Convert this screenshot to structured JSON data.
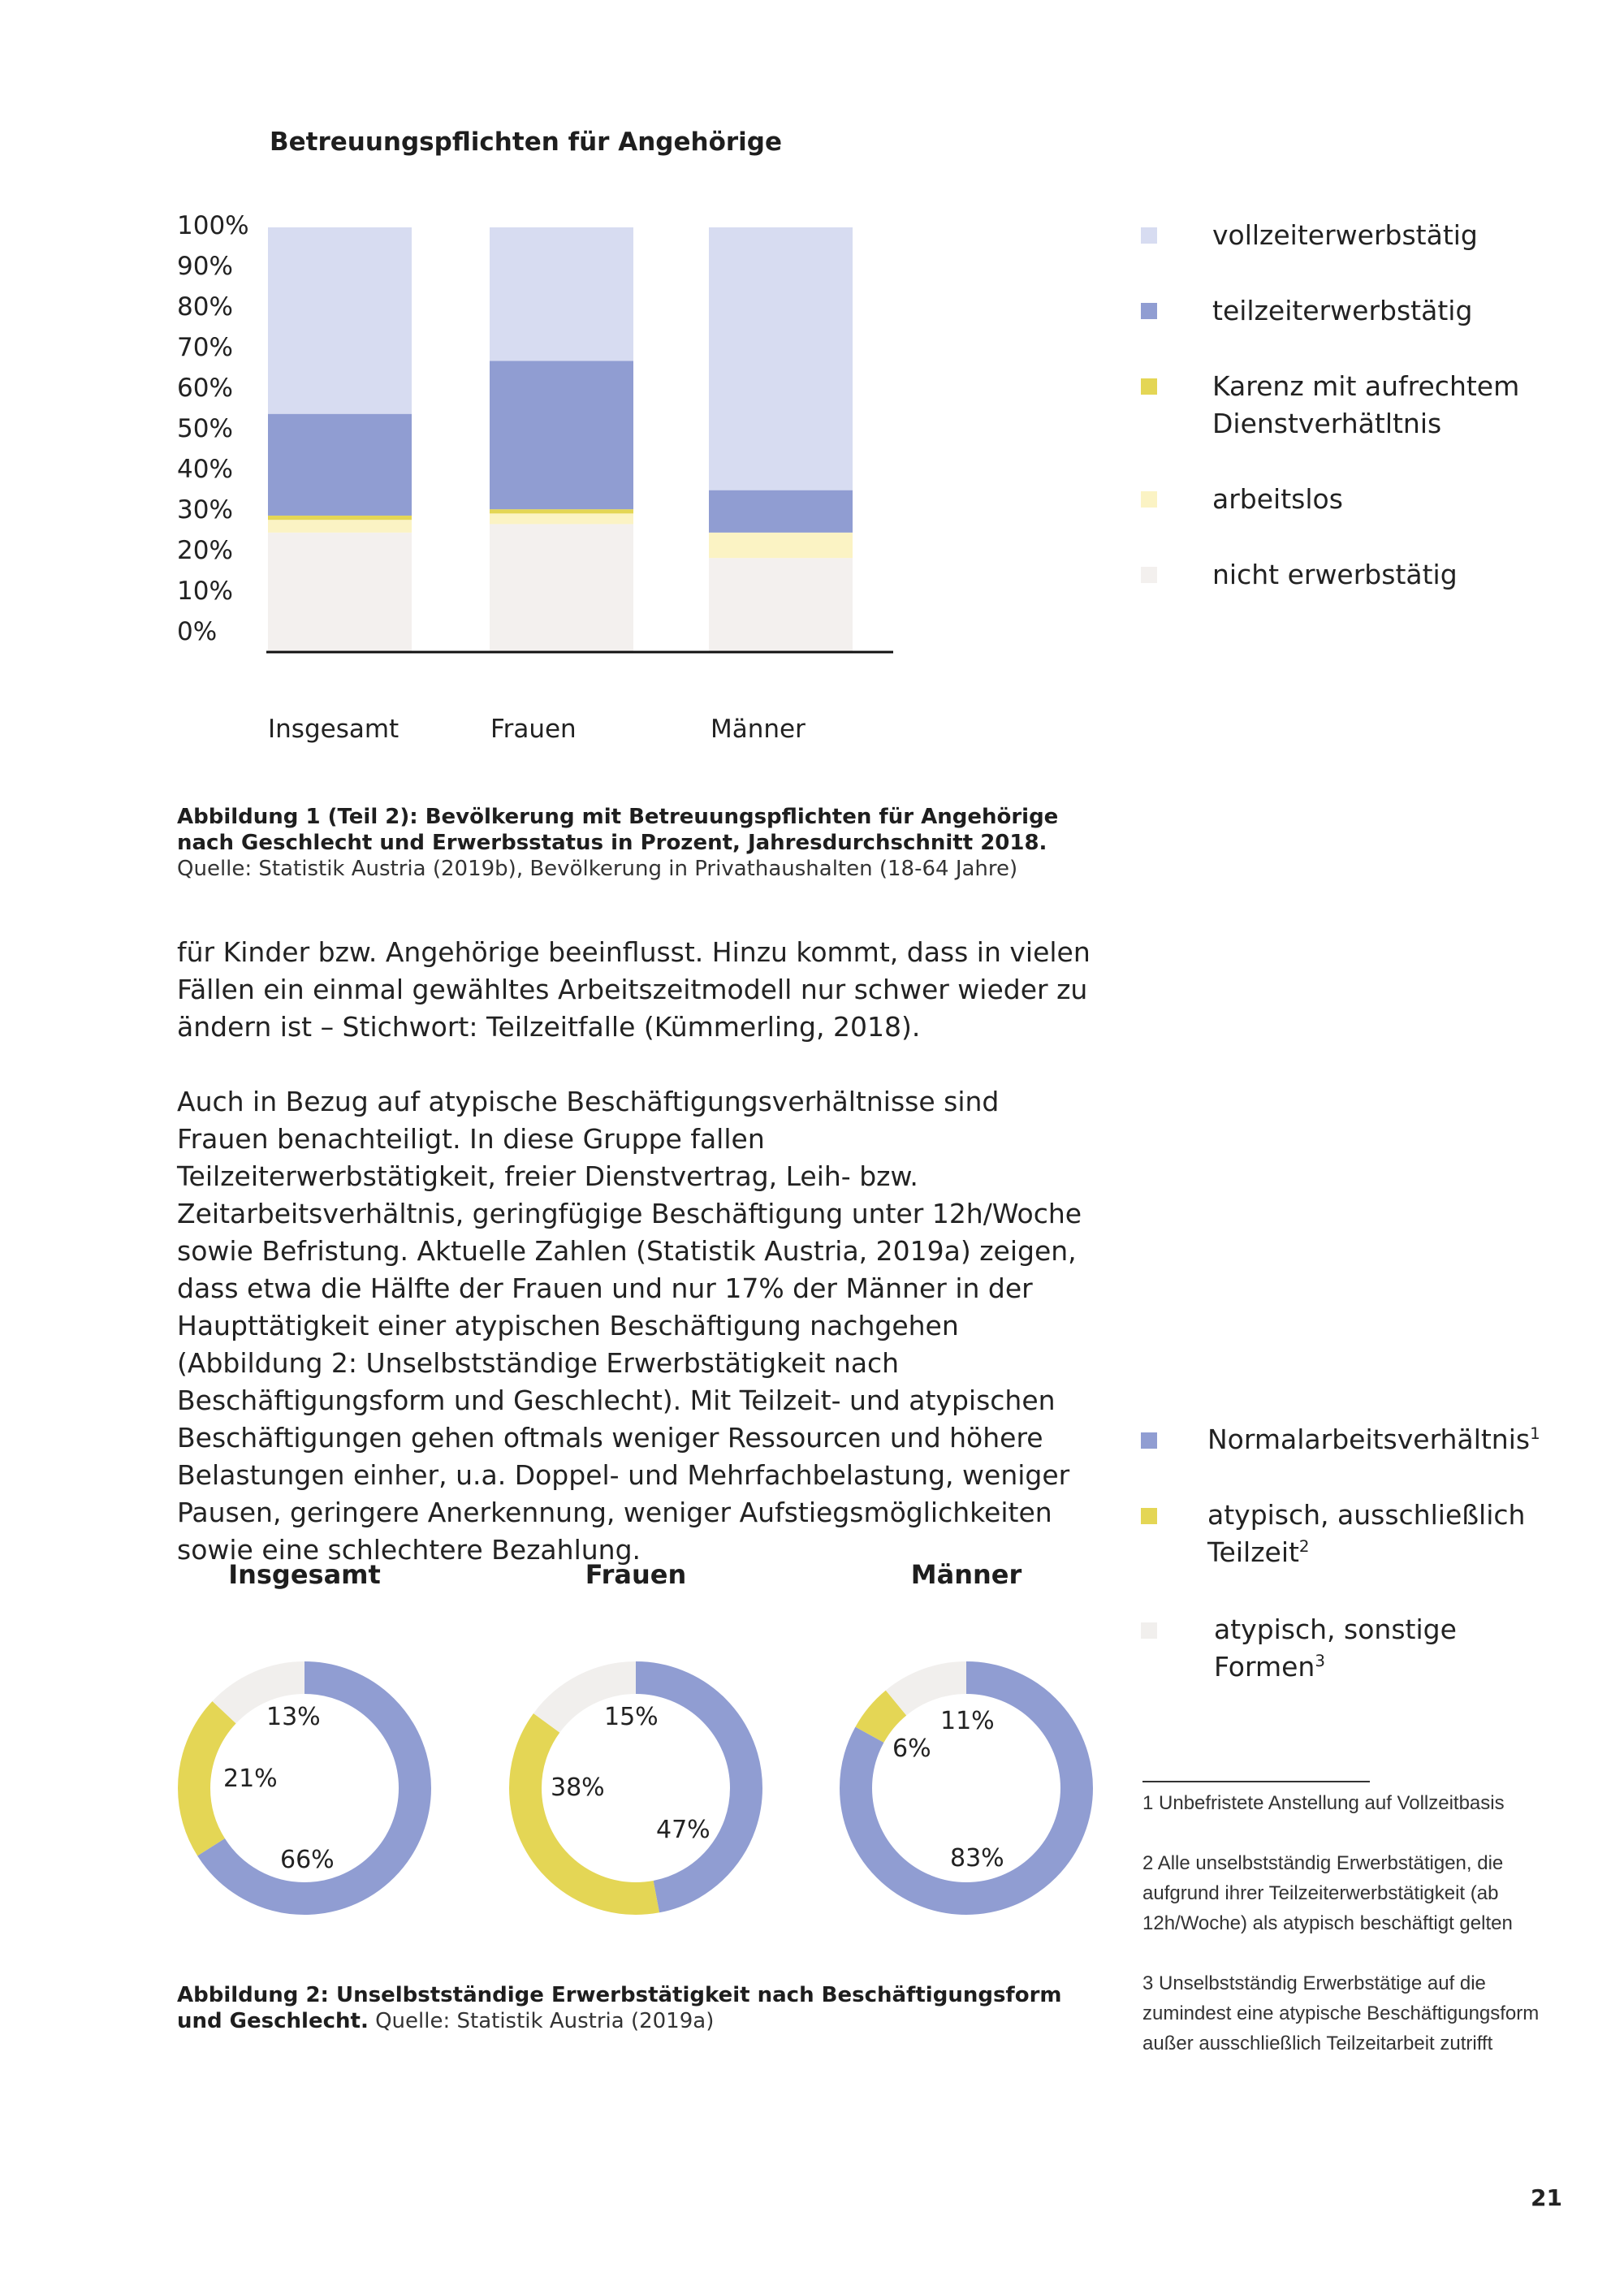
{
  "chart1": {
    "title": "Betreuungspflichten für Angehörige",
    "yticks": [
      "100%",
      "90%",
      "80%",
      "70%",
      "60%",
      "50%",
      "40%",
      "30%",
      "20%",
      "10%",
      "0%"
    ],
    "categories": [
      "Insgesamt",
      "Frauen",
      "Männer"
    ]
  },
  "chart_data": [
    {
      "type": "bar",
      "stacked": true,
      "title": "Betreuungspflichten für Angehörige",
      "categories": [
        "Insgesamt",
        "Frauen",
        "Männer"
      ],
      "ylim": [
        0,
        100
      ],
      "yunit": "%",
      "legend_position": "right",
      "series": [
        {
          "name": "nicht erwerbstätig",
          "color": "#f3f0ee",
          "values": [
            28,
            30,
            22
          ]
        },
        {
          "name": "arbeitslos",
          "color": "#fbf3c4",
          "values": [
            3,
            2.5,
            6
          ]
        },
        {
          "name": "Karenz mit aufrechtem Dienstverhätltnis",
          "color": "#e4d655",
          "values": [
            1,
            1,
            0
          ]
        },
        {
          "name": "teilzeiterwerbstätig",
          "color": "#909dd2",
          "values": [
            24,
            35,
            10
          ]
        },
        {
          "name": "vollzeiterwerbstätig",
          "color": "#d7dcf1",
          "values": [
            44,
            31.5,
            62
          ]
        }
      ]
    },
    {
      "type": "pie",
      "donut": true,
      "title": "Insgesamt",
      "slices": [
        {
          "name": "Normalarbeitsverhältnis",
          "value": 66,
          "label": "66%",
          "color": "#909dd2"
        },
        {
          "name": "atypisch, ausschließlich Teilzeit",
          "value": 21,
          "label": "21%",
          "color": "#e4d655"
        },
        {
          "name": "atypisch, sonstige Formen",
          "value": 13,
          "label": "13%",
          "color": "#f1efed"
        }
      ]
    },
    {
      "type": "pie",
      "donut": true,
      "title": "Frauen",
      "slices": [
        {
          "name": "Normalarbeitsverhältnis",
          "value": 47,
          "label": "47%",
          "color": "#909dd2"
        },
        {
          "name": "atypisch, ausschließlich Teilzeit",
          "value": 38,
          "label": "38%",
          "color": "#e4d655"
        },
        {
          "name": "atypisch, sonstige Formen",
          "value": 15,
          "label": "15%",
          "color": "#f1efed"
        }
      ]
    },
    {
      "type": "pie",
      "donut": true,
      "title": "Männer",
      "slices": [
        {
          "name": "Normalarbeitsverhältnis",
          "value": 83,
          "label": "83%",
          "color": "#909dd2"
        },
        {
          "name": "atypisch, ausschließlich Teilzeit",
          "value": 6,
          "label": "6%",
          "color": "#e4d655"
        },
        {
          "name": "atypisch, sonstige Formen",
          "value": 11,
          "label": "11%",
          "color": "#f1efed"
        }
      ]
    }
  ],
  "legend1": [
    {
      "label": "vollzeiterwerbstätig",
      "color": "#d7dcf1"
    },
    {
      "label": "teilzeiterwerbstätig",
      "color": "#909dd2"
    },
    {
      "label": "Karenz mit aufrechtem Dienstverhätltnis",
      "color": "#e4d655"
    },
    {
      "label": "arbeitslos",
      "color": "#fbf3c4"
    },
    {
      "label": "nicht erwerbstätig",
      "color": "#f3f0ee"
    }
  ],
  "caption1": {
    "bold": "Abbildung 1 (Teil 2): Bevölkerung mit Betreuungspflichten für Angehörige nach Geschlecht und Erwerbsstatus in Prozent, Jahresdurchschnitt 2018.",
    "normal": "Quelle: Statistik Austria (2019b), Bevölkerung in Privathaushalten (18-64 Jahre)"
  },
  "body": {
    "p1": "für Kinder bzw. Angehörige beeinflusst. Hinzu kommt, dass in vielen Fällen ein einmal gewähltes Arbeitszeitmodell nur schwer wieder zu ändern ist – Stichwort: Teilzeitfalle (Kümmerling, 2018).",
    "p2": "Auch in Bezug auf atypische Beschäftigungsverhältnisse sind Frauen benachteiligt. In diese Gruppe fallen Teilzeiterwerbstätigkeit, freier Dienstvertrag, Leih- bzw. Zeitarbeitsverhältnis, geringfügige Beschäftigung unter 12h/Woche sowie Befristung. Aktuelle Zahlen (Statistik Austria, 2019a) zeigen, dass etwa die Hälfte der Frauen und nur 17% der Männer in der Haupttätigkeit einer atypischen Beschäftigung nachgehen (Abbildung 2: Unselbstständige Erwerbstätigkeit nach Beschäftigungsform und Geschlecht). Mit Teilzeit- und atypischen Beschäftigungen gehen oftmals weniger Ressourcen und höhere Belastungen einher, u.a. Doppel- und Mehrfachbelastung, weniger Pausen, geringere Anerkennung, weniger Aufstiegsmöglichkeiten sowie eine schlechtere Bezahlung."
  },
  "legend2": [
    {
      "label": "Normalarbeitsverhältnis",
      "sup": "1",
      "color": "#909dd2"
    },
    {
      "label": "atypisch, ausschließlich Teilzeit",
      "sup": "2",
      "color": "#e4d655"
    },
    {
      "label": "atypisch, sonstige Formen",
      "sup": "3",
      "color": "#f1efed"
    }
  ],
  "caption2": {
    "bold": "Abbildung 2: Unselbstständige Erwerbstätigkeit nach Beschäftigungsform und Geschlecht.",
    "normal": "Quelle: Statistik Austria (2019a)"
  },
  "footnotes": [
    "1 Unbefristete Anstellung auf Vollzeitbasis",
    "2 Alle unselbstständig Erwerbstätigen, die aufgrund ihrer Teilzeiterwerbstätigkeit (ab 12h/Woche) als atypisch beschäftigt gelten",
    "3 Unselbstständig Erwerbstätige auf die zumindest eine atypische Beschäftigungsform außer ausschließlich Teilzeitarbeit zutrifft"
  ],
  "page_number": "21"
}
